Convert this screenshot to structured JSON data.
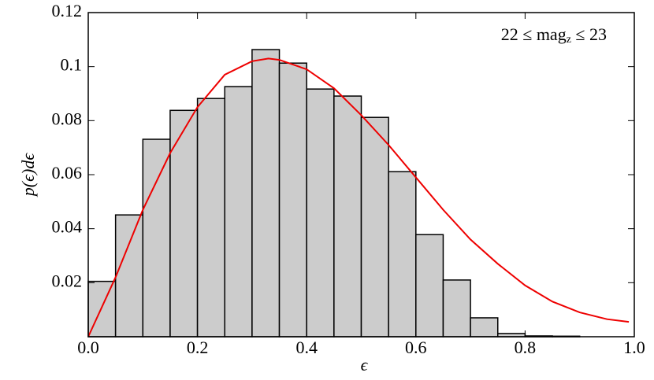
{
  "chart_data": {
    "type": "histogram",
    "bins": [
      0,
      0.05,
      0.1,
      0.15,
      0.2,
      0.25,
      0.3,
      0.35,
      0.4,
      0.45,
      0.5,
      0.55,
      0.6,
      0.65,
      0.7,
      0.75,
      0.8,
      0.85,
      0.9,
      0.95,
      1.0
    ],
    "values": [
      0.0205,
      0.0451,
      0.0731,
      0.0838,
      0.0882,
      0.0926,
      0.1063,
      0.1013,
      0.0917,
      0.0891,
      0.0812,
      0.0611,
      0.0378,
      0.021,
      0.007,
      0.0012,
      0.0003,
      0.0002,
      0,
      0
    ],
    "color": "#cccccc",
    "curve": {
      "x": [
        0,
        0.05,
        0.1,
        0.15,
        0.2,
        0.25,
        0.3,
        0.33,
        0.35,
        0.4,
        0.45,
        0.5,
        0.55,
        0.6,
        0.65,
        0.7,
        0.75,
        0.8,
        0.85,
        0.9,
        0.95,
        0.99
      ],
      "values": [
        0,
        0.022,
        0.047,
        0.068,
        0.085,
        0.097,
        0.102,
        0.103,
        0.1025,
        0.099,
        0.092,
        0.082,
        0.071,
        0.059,
        0.047,
        0.036,
        0.027,
        0.019,
        0.013,
        0.009,
        0.0065,
        0.0055
      ],
      "color": "#ee0000"
    },
    "xlabel": "ϵ",
    "ylabel": "p(ϵ)dϵ",
    "annotation": [
      "22 ≤ mag",
      "z",
      " ≤ 23"
    ],
    "xlim": [
      0,
      1.0
    ],
    "ylim": [
      0,
      0.12
    ],
    "xticks": [
      {
        "value": 0,
        "label": "0.0"
      },
      0.2,
      0.4,
      0.6,
      0.8,
      {
        "value": 1.0,
        "label": "1.0"
      }
    ],
    "yticks": [
      0.02,
      0.04,
      0.06,
      0.08,
      0.1,
      0.12
    ]
  }
}
